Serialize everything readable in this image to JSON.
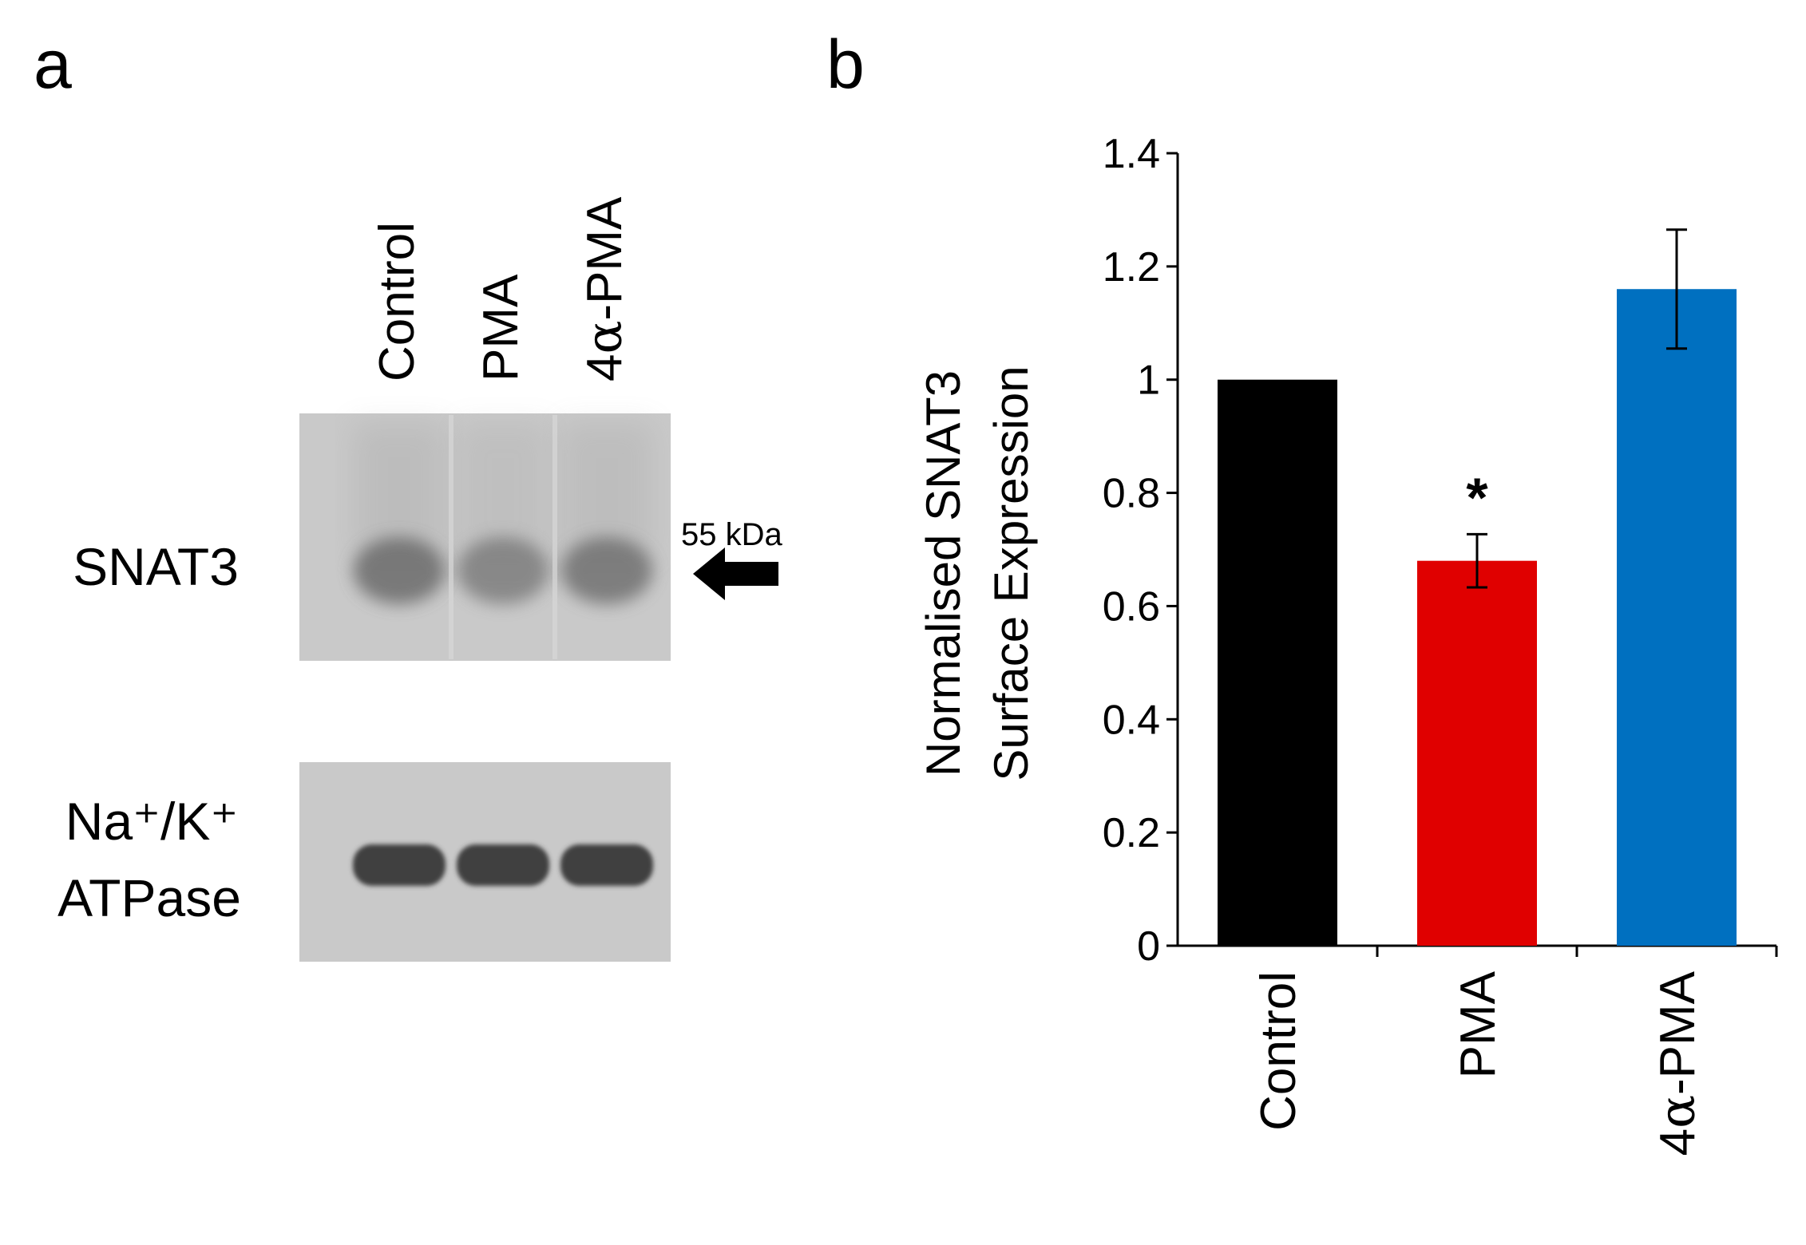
{
  "panels": {
    "a": {
      "letter": "a"
    },
    "b": {
      "letter": "b"
    }
  },
  "blot": {
    "lanes": [
      {
        "prefix": "Control",
        "greek": ""
      },
      {
        "prefix": "PMA",
        "greek": ""
      },
      {
        "prefix": "4",
        "greek": "α",
        "suffix": "-PMA"
      }
    ],
    "rows": [
      {
        "label_lines": [
          "SNAT3"
        ]
      },
      {
        "label_lines": [
          "Na⁺/K⁺",
          "ATPase"
        ]
      }
    ],
    "marker_label": "55 kDa",
    "colors": {
      "background": "#c9c9c9",
      "band": "#5f5f5f",
      "band_dark": "#3f3f3f"
    },
    "snat3_intensity": [
      0.75,
      0.6,
      0.7
    ],
    "atpase_intensity": [
      1.0,
      1.0,
      1.0
    ]
  },
  "chart_data": {
    "type": "bar",
    "categories": [
      "Control",
      "PMA",
      "4α-PMA"
    ],
    "category_parts": [
      {
        "prefix": "Control",
        "greek": "",
        "suffix": ""
      },
      {
        "prefix": "PMA",
        "greek": "",
        "suffix": ""
      },
      {
        "prefix": "4",
        "greek": "α",
        "suffix": "-PMA"
      }
    ],
    "values": [
      1.0,
      0.68,
      1.16
    ],
    "errors": [
      0,
      0.047,
      0.105
    ],
    "colors": [
      "#000000",
      "#e00000",
      "#0070c0"
    ],
    "annotations": [
      "",
      "*",
      ""
    ],
    "ylabel_lines": [
      "Normalised SNAT3",
      "Surface Expression"
    ],
    "ylim": [
      0,
      1.4
    ],
    "yticks": [
      0,
      0.2,
      0.4,
      0.6,
      0.8,
      1,
      1.2,
      1.4
    ],
    "ytick_labels": [
      "0",
      "0.2",
      "0.4",
      "0.6",
      "0.8",
      "1",
      "1.2",
      "1.4"
    ],
    "grid": false
  }
}
